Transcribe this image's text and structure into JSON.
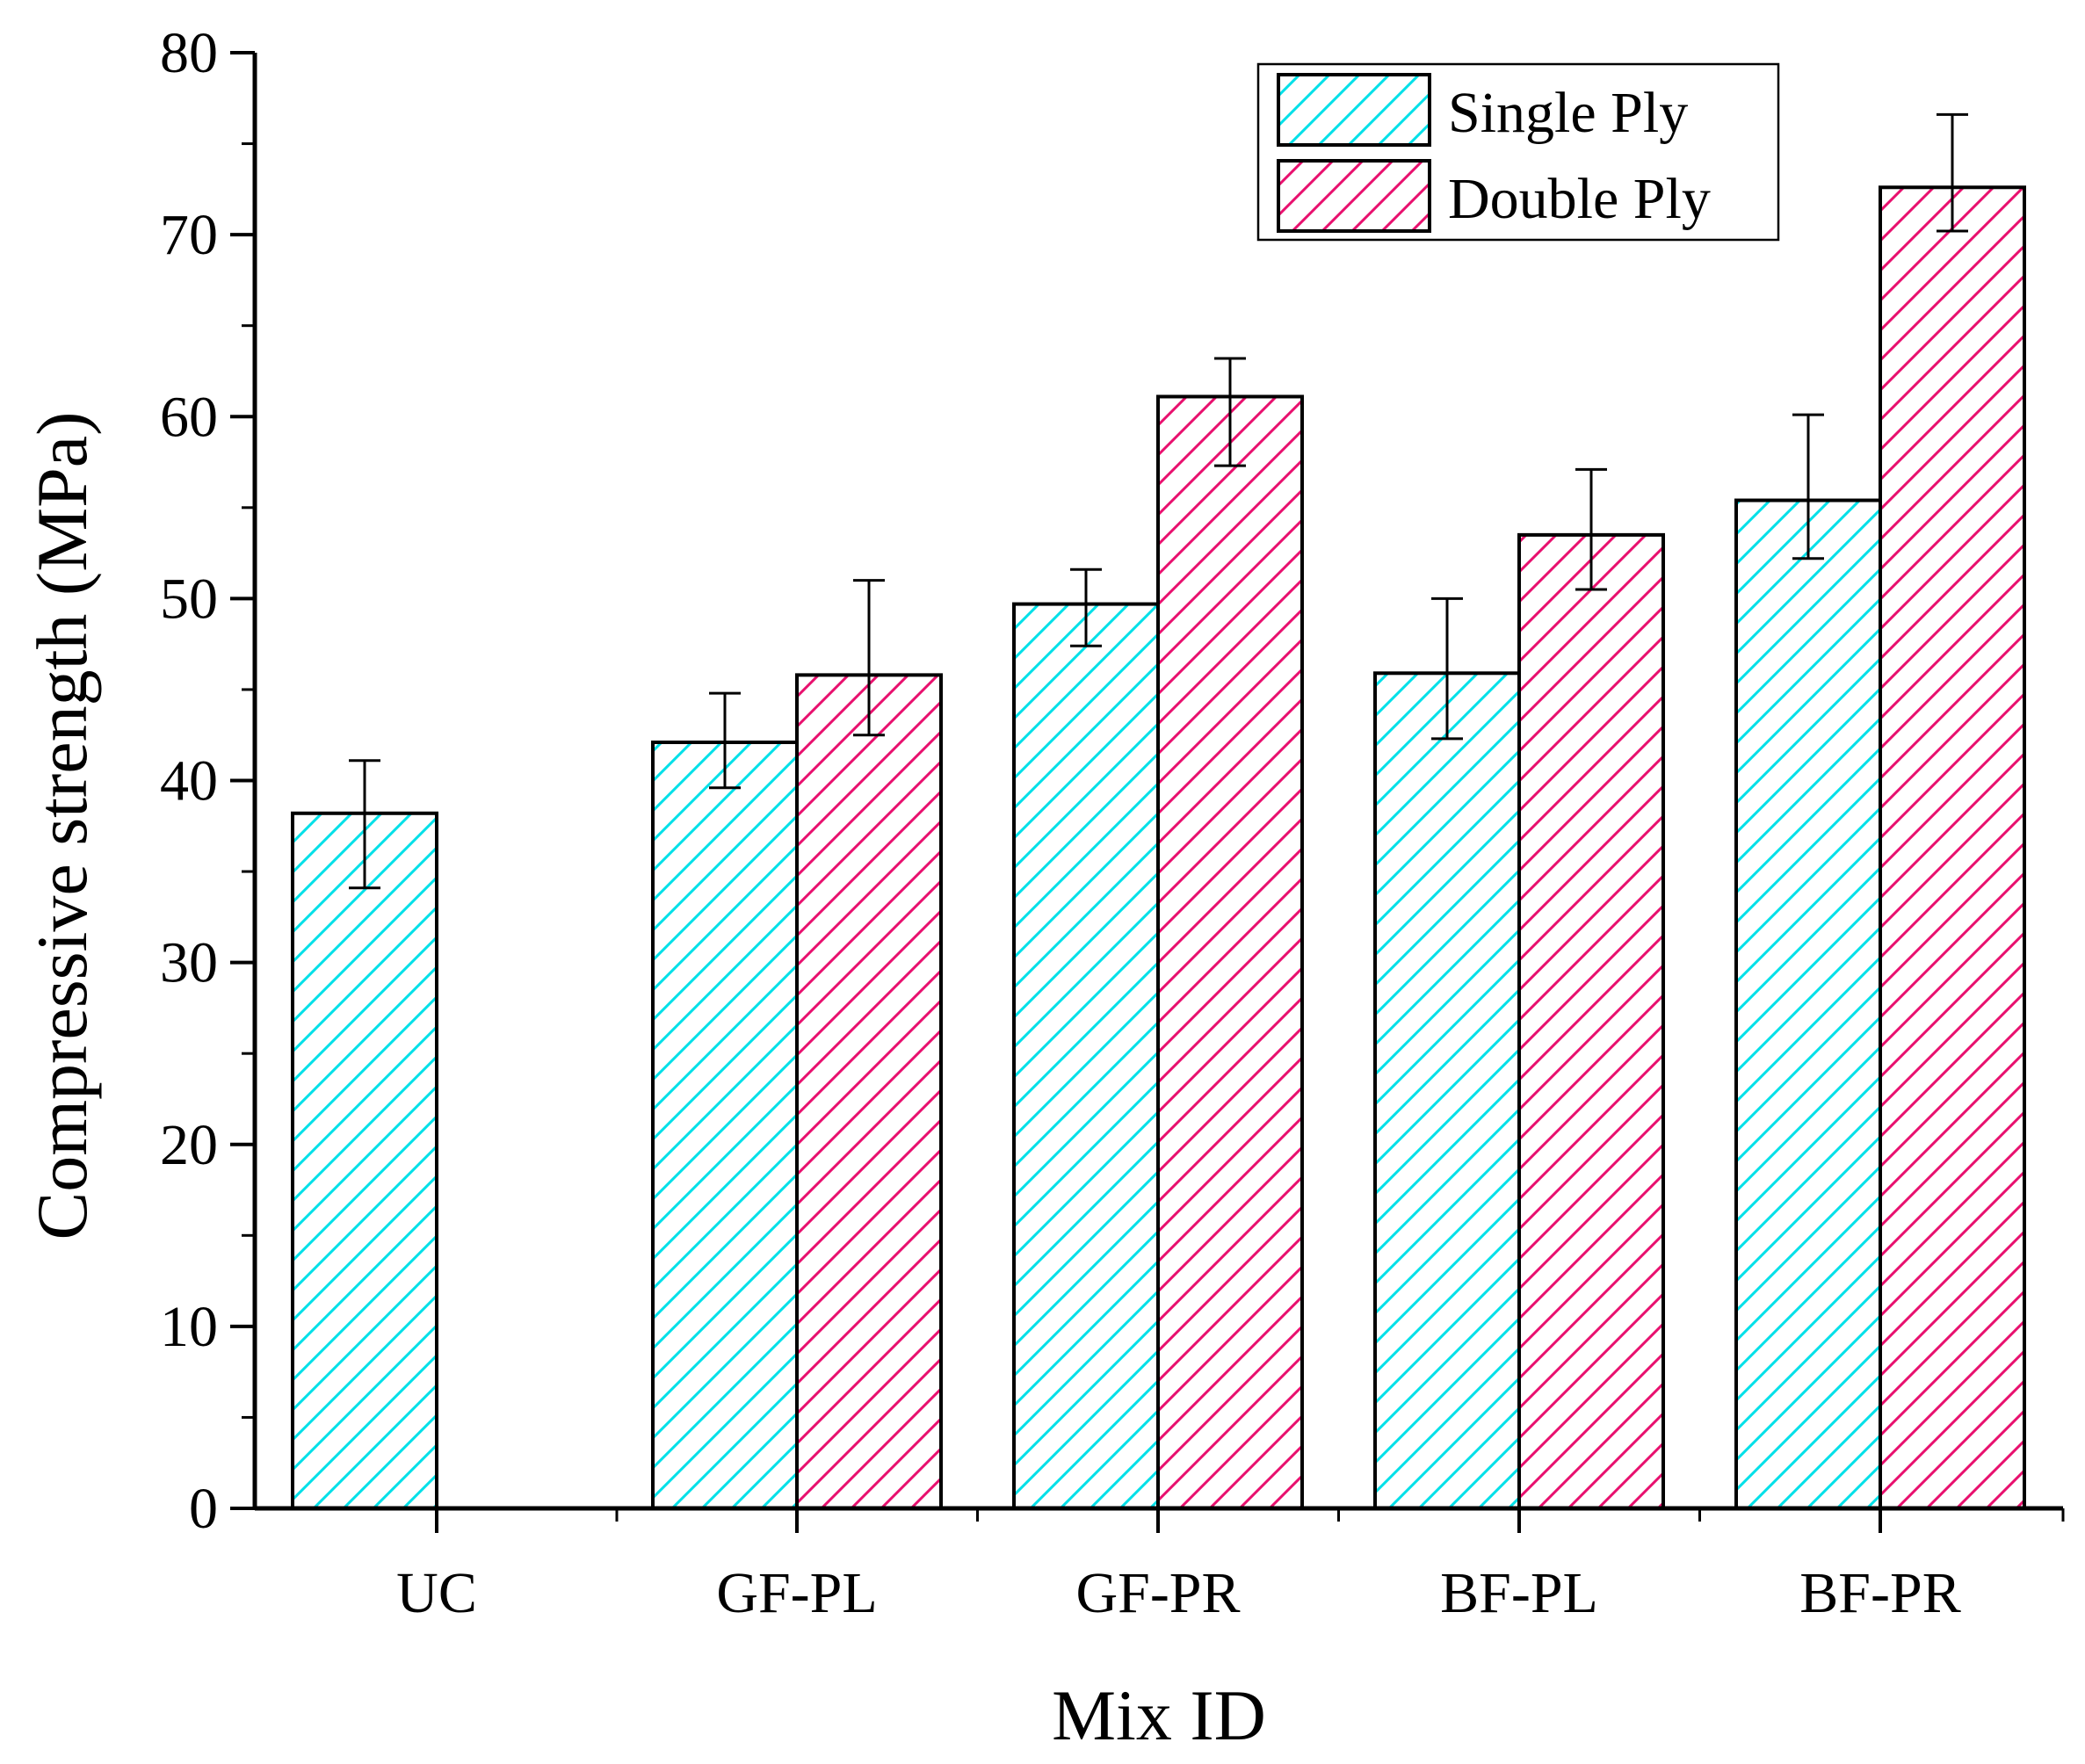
{
  "chart_data": {
    "type": "bar",
    "xlabel": "Mix ID",
    "ylabel": "Compressive strength (MPa)",
    "ylim": [
      0,
      80
    ],
    "yticks": [
      0,
      10,
      20,
      30,
      40,
      50,
      60,
      70,
      80
    ],
    "categories": [
      "UC",
      "GF-PL",
      "GF-PR",
      "BF-PL",
      "BF-PR"
    ],
    "legend_position": "top-right",
    "series": [
      {
        "name": "Single Ply",
        "color": "#00e0e8",
        "values": [
          38.2,
          42.1,
          49.7,
          45.9,
          55.4
        ],
        "error_low": [
          34.1,
          39.6,
          47.4,
          42.3,
          52.2
        ],
        "error_high": [
          41.1,
          44.8,
          51.6,
          50.0,
          60.1
        ]
      },
      {
        "name": "Double Ply",
        "color": "#e8106e",
        "values": [
          null,
          45.8,
          61.1,
          53.5,
          72.6
        ],
        "error_low": [
          null,
          42.5,
          57.3,
          50.5,
          70.2
        ],
        "error_high": [
          null,
          51.0,
          63.2,
          57.1,
          76.6
        ]
      }
    ]
  }
}
